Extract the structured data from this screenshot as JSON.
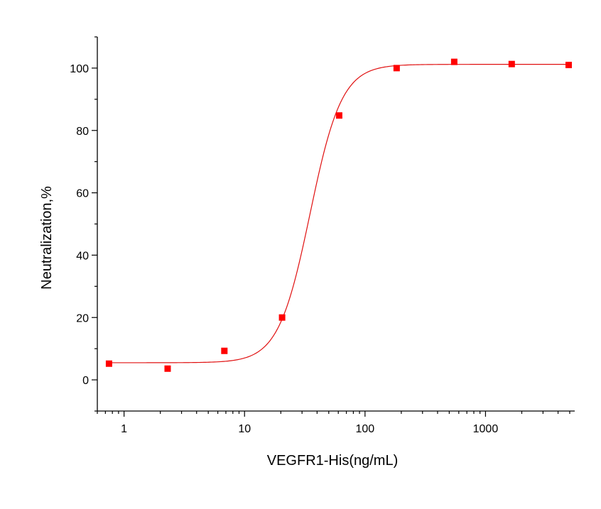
{
  "chart_data": {
    "type": "scatter",
    "title": "",
    "xlabel": "VEGFR1-His(ng/mL)",
    "ylabel": "Neutralization,%",
    "x_scale": "log",
    "xlim": [
      0.6,
      5500
    ],
    "ylim": [
      -10,
      110
    ],
    "x_ticks": [
      1,
      10,
      100,
      1000
    ],
    "x_tick_labels": [
      "1",
      "10",
      "100",
      "1000"
    ],
    "y_ticks": [
      0,
      20,
      40,
      60,
      80,
      100
    ],
    "y_tick_labels": [
      "0",
      "20",
      "40",
      "60",
      "80",
      "100"
    ],
    "grid": false,
    "colors": {
      "points": "#ff0000",
      "fit_line": "#e01010",
      "axes": "#000000"
    },
    "series": [
      {
        "type": "scatter",
        "marker": "square",
        "x": [
          0.75,
          2.3,
          6.8,
          20.5,
          61,
          183,
          550,
          1650,
          4900
        ],
        "y": [
          5.2,
          3.6,
          9.3,
          20,
          84.8,
          100,
          102,
          101.3,
          101
        ]
      },
      {
        "type": "line",
        "fit": "four-parameter logistic",
        "bottom": 5.5,
        "top": 101.2,
        "ec50": 35,
        "hill_slope": 3.3
      }
    ]
  }
}
